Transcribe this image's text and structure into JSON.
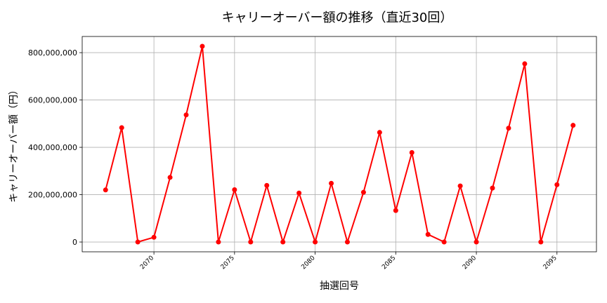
{
  "chart_data": {
    "type": "line",
    "title": "キャリーオーバー額の推移（直近30回）",
    "xlabel": "抽選回号",
    "ylabel": "キャリーオーバー額（円）",
    "x": [
      2067,
      2068,
      2069,
      2070,
      2071,
      2072,
      2073,
      2074,
      2075,
      2076,
      2077,
      2078,
      2079,
      2080,
      2081,
      2082,
      2083,
      2084,
      2085,
      2086,
      2087,
      2088,
      2089,
      2090,
      2091,
      2092,
      2093,
      2094,
      2095,
      2096
    ],
    "series": [
      {
        "values": [
          220000000,
          483000000,
          0,
          20000000,
          273000000,
          537000000,
          827000000,
          0,
          221000000,
          0,
          239000000,
          0,
          207000000,
          0,
          248000000,
          0,
          210000000,
          463000000,
          133000000,
          378000000,
          32000000,
          0,
          237000000,
          0,
          228000000,
          481000000,
          753000000,
          0,
          242000000,
          493000000
        ],
        "color": "#ff0000"
      }
    ],
    "xticks": [
      2070,
      2075,
      2080,
      2085,
      2090,
      2095
    ],
    "xtick_labels": [
      "2070",
      "2075",
      "2080",
      "2085",
      "2090",
      "2095"
    ],
    "yticks": [
      0,
      200000000,
      400000000,
      600000000,
      800000000
    ],
    "ytick_labels": [
      "0",
      "200,000,000",
      "400,000,000",
      "600,000,000",
      "800,000,000"
    ],
    "xlim": [
      2065.55,
      2097.45
    ],
    "ylim": [
      -41350000,
      868350000
    ],
    "grid": true,
    "legend": "none"
  }
}
